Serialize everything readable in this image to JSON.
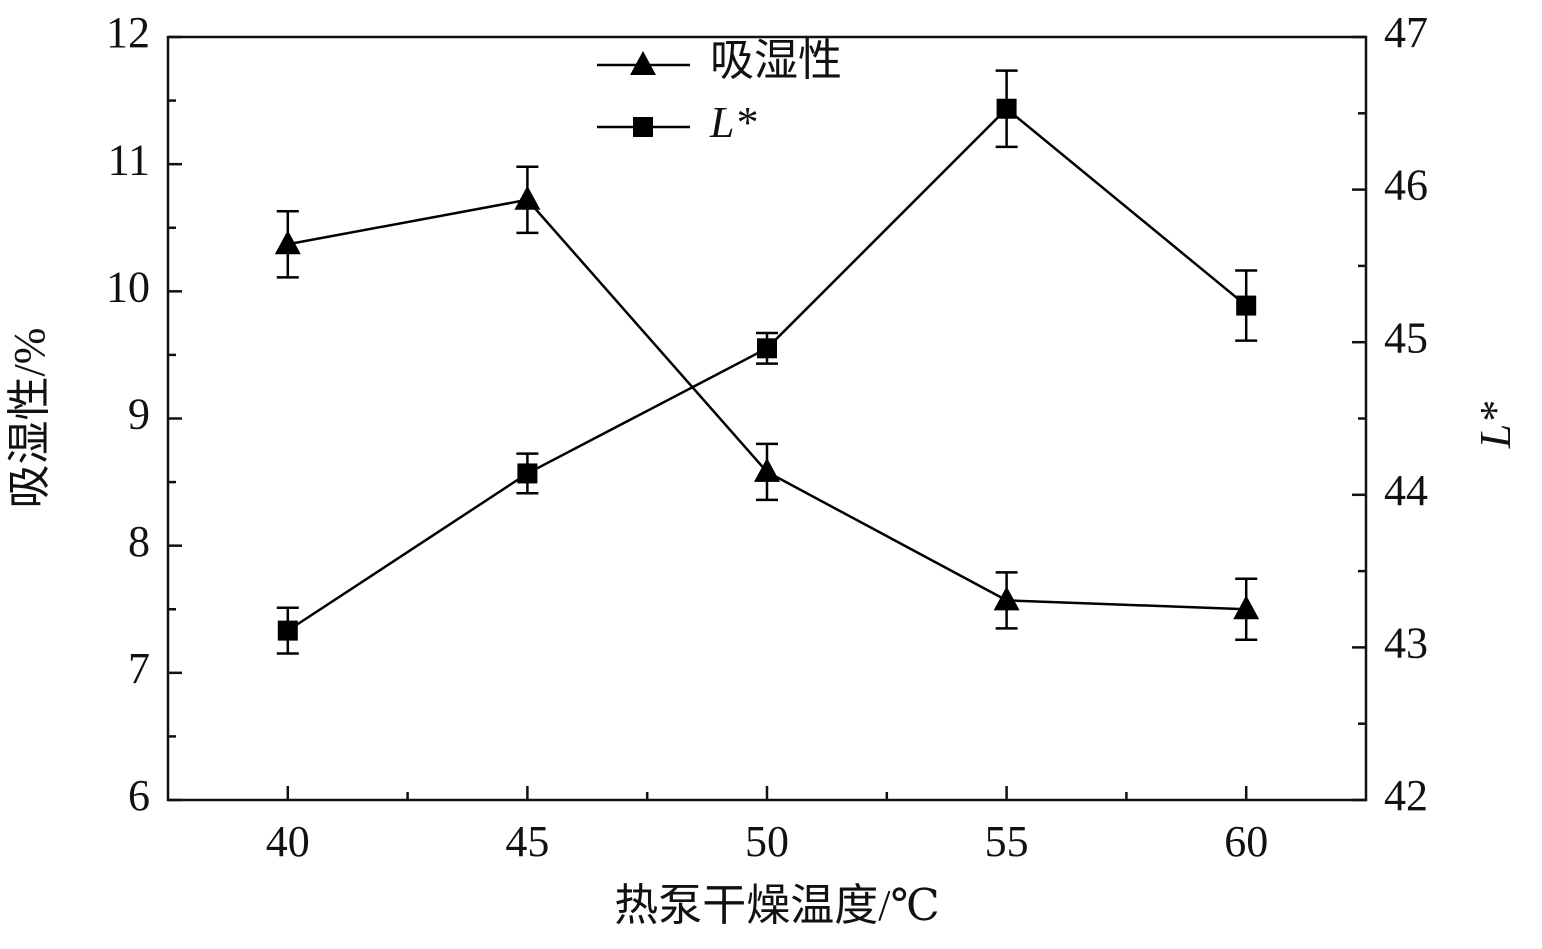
{
  "chart_data": {
    "type": "line",
    "x_label": "热泵干燥温度/℃",
    "y_label": "吸湿性/%",
    "y2_label": "L*",
    "x": [
      40,
      45,
      50,
      55,
      60
    ],
    "xlim": [
      37.5,
      62.5
    ],
    "xticks": [
      40,
      45,
      50,
      55,
      60
    ],
    "xminor": [
      42.5,
      47.5,
      52.5,
      57.5
    ],
    "ylim": [
      6,
      12
    ],
    "yticks": [
      6,
      7,
      8,
      9,
      10,
      11,
      12
    ],
    "yminor": [
      6.5,
      7.5,
      8.5,
      9.5,
      10.5,
      11.5
    ],
    "y2lim": [
      42,
      47
    ],
    "y2ticks": [
      42,
      43,
      44,
      45,
      46,
      47
    ],
    "y2minor": [
      42.5,
      43.5,
      44.5,
      45.5,
      46.5
    ],
    "legend": "top",
    "series": [
      {
        "name": "吸湿性",
        "color": "#000000",
        "marker": "triangle",
        "values": [
          10.37,
          10.72,
          8.58,
          7.57,
          7.5
        ],
        "errors": [
          0.26,
          0.26,
          0.22,
          0.22,
          0.24
        ]
      },
      {
        "name": "L*",
        "color": "#000000",
        "marker": "square",
        "axis": "y2",
        "values": [
          43.11,
          44.14,
          44.96,
          46.53,
          45.24
        ],
        "errors": [
          0.15,
          0.13,
          0.1,
          0.25,
          0.23
        ]
      }
    ]
  }
}
